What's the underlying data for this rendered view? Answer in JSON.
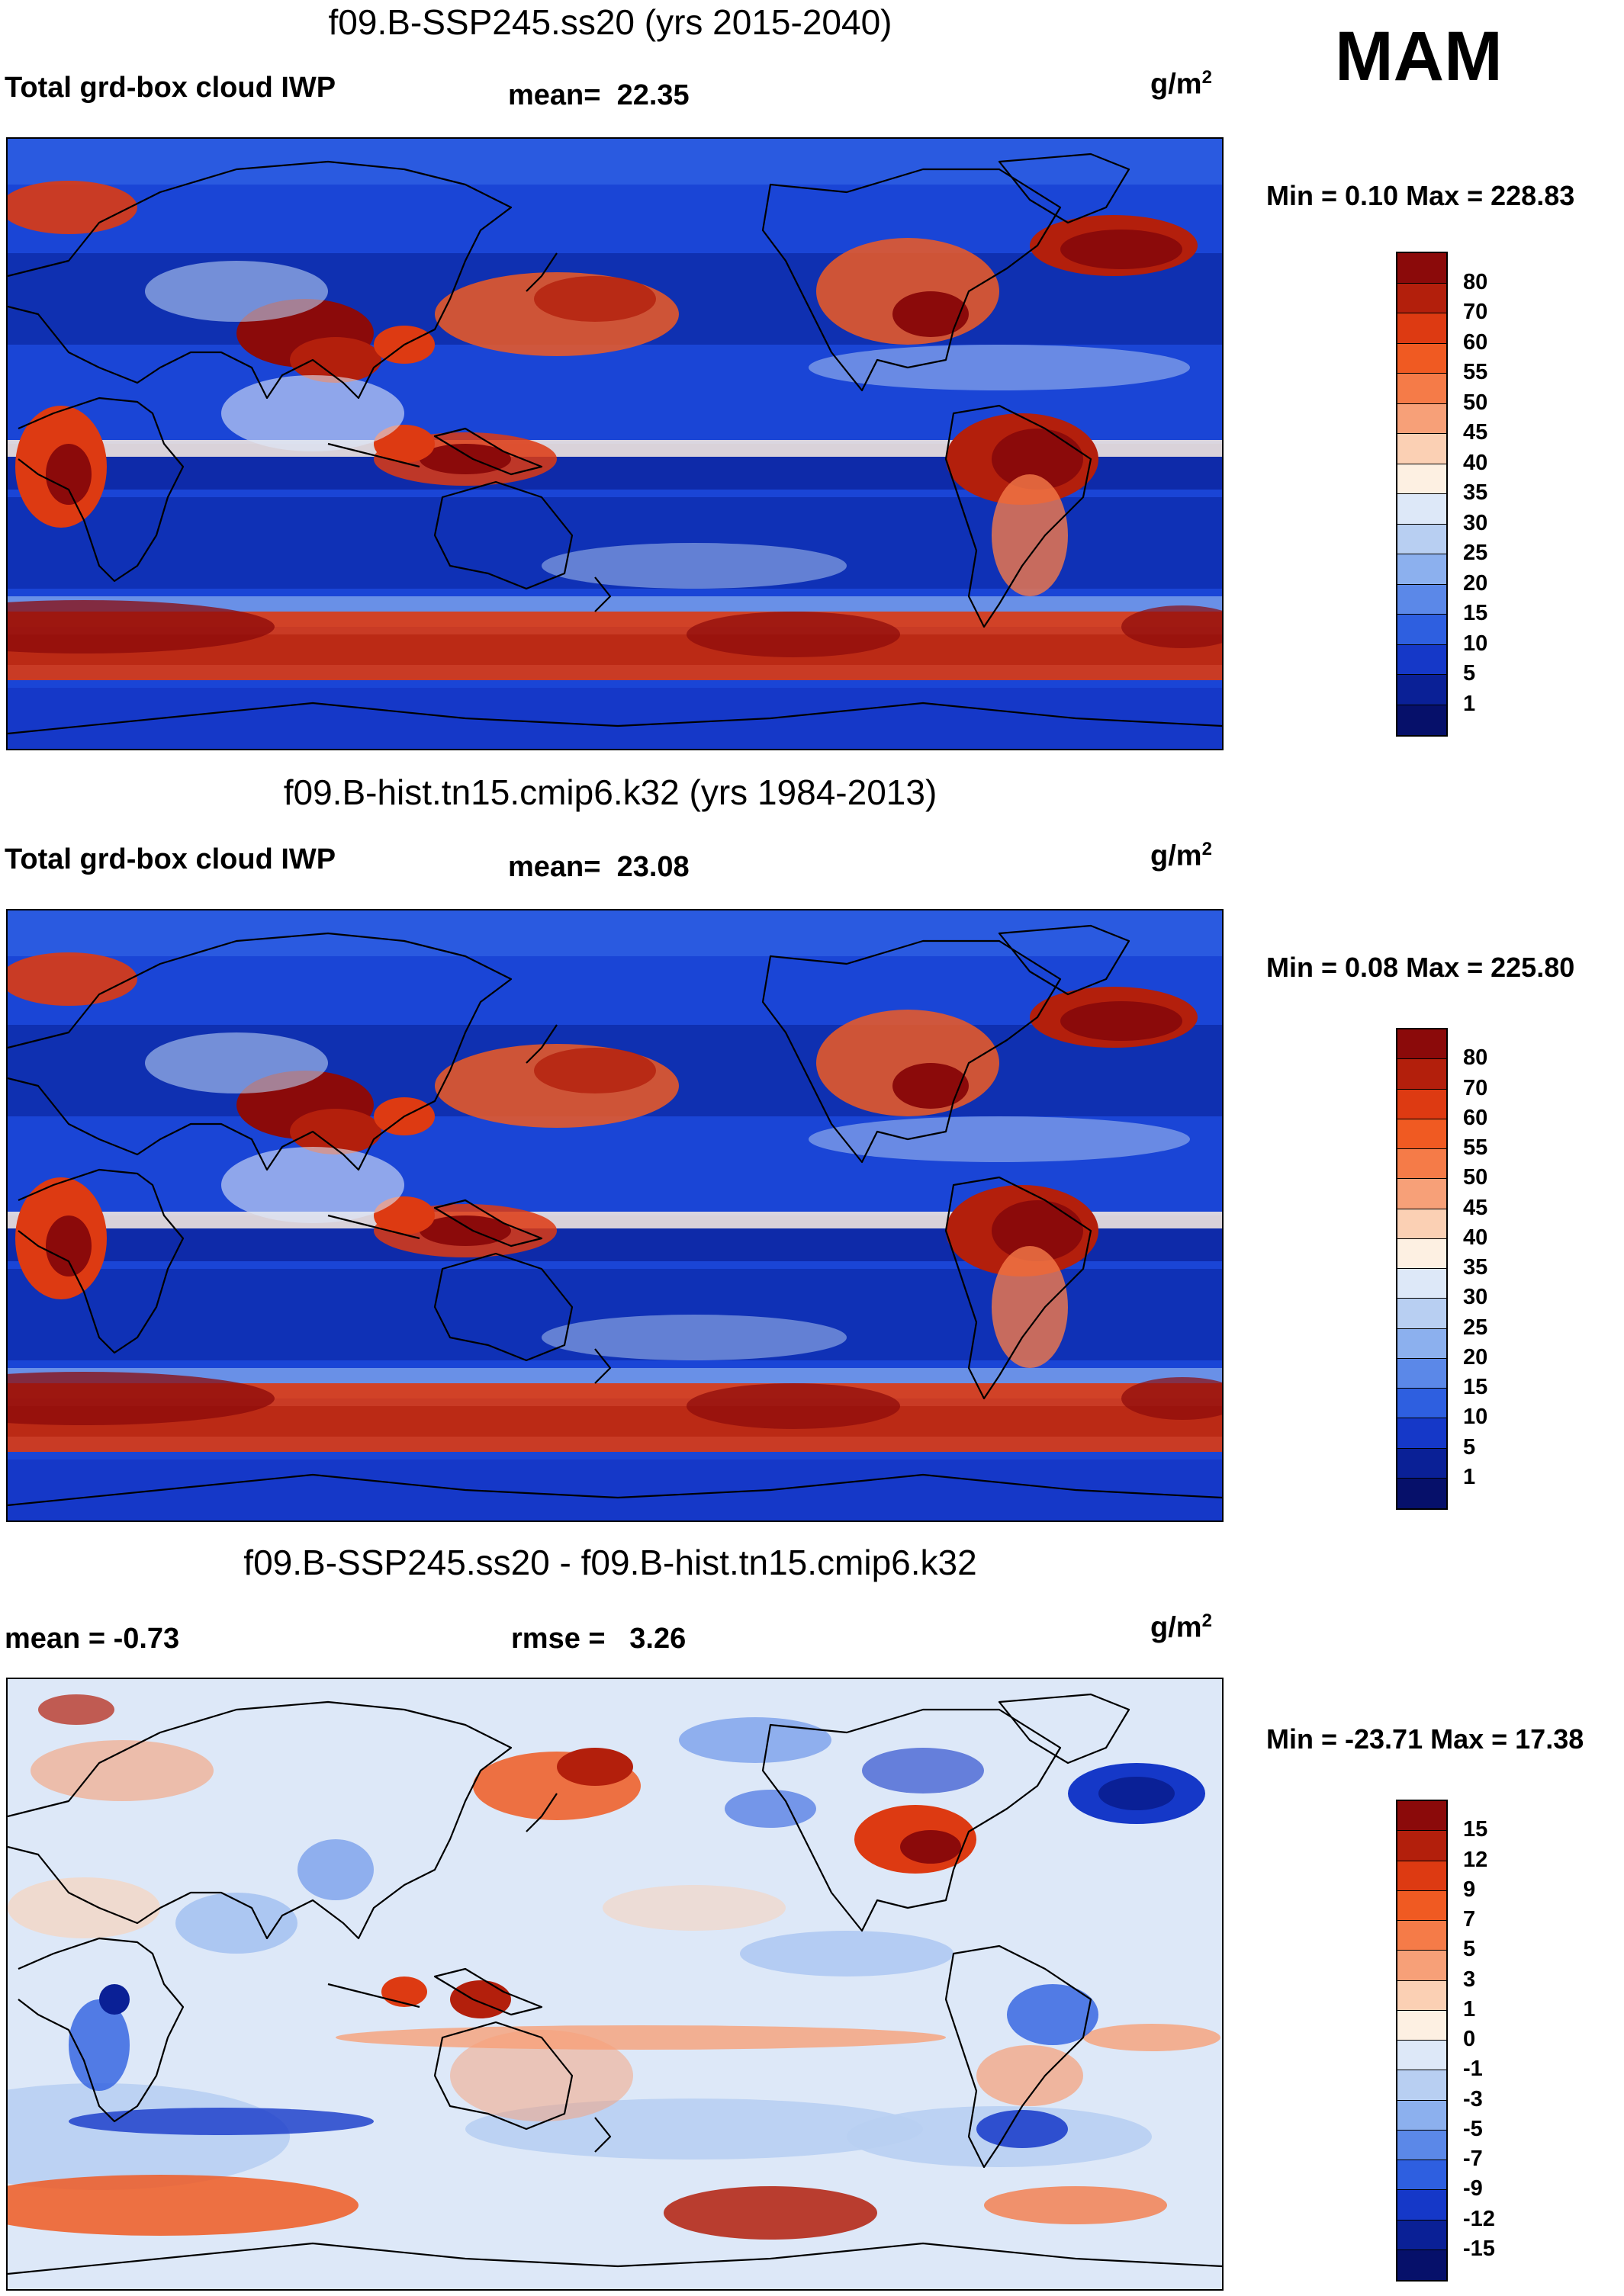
{
  "season": "MAM",
  "panels": [
    {
      "title": "f09.B-SSP245.ss20 (yrs 2015-2040)",
      "left_label": "Total grd-box cloud IWP",
      "stat1_label": "mean=",
      "stat1_value": "22.35",
      "stat2_label": "",
      "stat2_value": "",
      "units_base": "g/m",
      "units_exp": "2",
      "minmax": "Min =   0.10 Max = 228.83",
      "map_type": "absolute"
    },
    {
      "title": "f09.B-hist.tn15.cmip6.k32 (yrs 1984-2013)",
      "left_label": "Total grd-box cloud IWP",
      "stat1_label": "mean=",
      "stat1_value": "23.08",
      "stat2_label": "",
      "stat2_value": "",
      "units_base": "g/m",
      "units_exp": "2",
      "minmax": "Min =   0.08 Max = 225.80",
      "map_type": "absolute"
    },
    {
      "title": "f09.B-SSP245.ss20 - f09.B-hist.tn15.cmip6.k32",
      "left_label": "mean =  -0.73",
      "stat1_label": "rmse =",
      "stat1_value": "3.26",
      "stat2_label": "",
      "stat2_value": "",
      "units_base": "g/m",
      "units_exp": "2",
      "minmax": "Min = -23.71 Max =  17.38",
      "map_type": "difference"
    }
  ],
  "chart_data": [
    {
      "type": "heatmap",
      "title": "f09.B-SSP245.ss20 (yrs 2015-2040)",
      "variable": "Total grd-box cloud IWP",
      "units": "g/m2",
      "mean": 22.35,
      "min": 0.1,
      "max": 228.83,
      "colorbar_levels": [
        "80",
        "70",
        "60",
        "55",
        "50",
        "45",
        "40",
        "35",
        "30",
        "25",
        "20",
        "15",
        "10",
        "5",
        "1"
      ],
      "colorbar_colors": [
        "#8b0a0a",
        "#b31f0c",
        "#dd3a12",
        "#f05a22",
        "#f57b48",
        "#f7a078",
        "#fbd0b4",
        "#fdf0e2",
        "#dde8f8",
        "#b8cff2",
        "#8cb0ee",
        "#5b88e8",
        "#2e5fe0",
        "#1538c8",
        "#0a2096",
        "#06106a"
      ]
    },
    {
      "type": "heatmap",
      "title": "f09.B-hist.tn15.cmip6.k32 (yrs 1984-2013)",
      "variable": "Total grd-box cloud IWP",
      "units": "g/m2",
      "mean": 23.08,
      "min": 0.08,
      "max": 225.8,
      "colorbar_levels": [
        "80",
        "70",
        "60",
        "55",
        "50",
        "45",
        "40",
        "35",
        "30",
        "25",
        "20",
        "15",
        "10",
        "5",
        "1"
      ],
      "colorbar_colors": [
        "#8b0a0a",
        "#b31f0c",
        "#dd3a12",
        "#f05a22",
        "#f57b48",
        "#f7a078",
        "#fbd0b4",
        "#fdf0e2",
        "#dde8f8",
        "#b8cff2",
        "#8cb0ee",
        "#5b88e8",
        "#2e5fe0",
        "#1538c8",
        "#0a2096",
        "#06106a"
      ]
    },
    {
      "type": "heatmap",
      "title": "f09.B-SSP245.ss20 - f09.B-hist.tn15.cmip6.k32",
      "variable": "difference",
      "units": "g/m2",
      "mean": -0.73,
      "rmse": 3.26,
      "min": -23.71,
      "max": 17.38,
      "colorbar_levels": [
        "15",
        "12",
        "9",
        "7",
        "5",
        "3",
        "1",
        "0",
        "-1",
        "-3",
        "-5",
        "-7",
        "-9",
        "-12",
        "-15"
      ],
      "colorbar_colors": [
        "#8b0a0a",
        "#b31f0c",
        "#dd3a12",
        "#f05a22",
        "#f57b48",
        "#f7a078",
        "#fbd0b4",
        "#fdf0e2",
        "#dde8f8",
        "#b8cff2",
        "#8cb0ee",
        "#5b88e8",
        "#2e5fe0",
        "#1538c8",
        "#0a2096",
        "#06106a"
      ]
    }
  ]
}
